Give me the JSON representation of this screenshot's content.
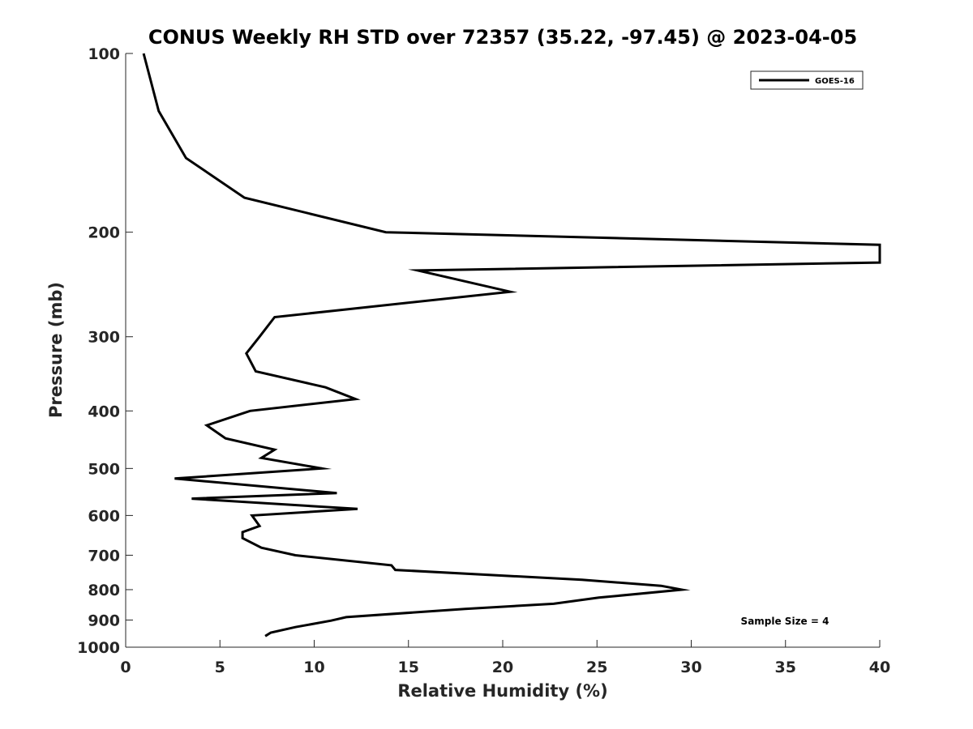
{
  "chart_data": {
    "type": "line",
    "title": "CONUS Weekly RH STD over 72357 (35.22, -97.45) @ 2023-04-05",
    "xlabel": "Relative Humidity (%)",
    "ylabel": "Pressure (mb)",
    "xlim": [
      0,
      40
    ],
    "ylim": [
      100,
      1000
    ],
    "y_scale": "log",
    "y_reversed": true,
    "grid": false,
    "legend_position": "top-right",
    "xticks": [
      0,
      5,
      10,
      15,
      20,
      25,
      30,
      35,
      40
    ],
    "xtick_labels": [
      "0",
      "5",
      "10",
      "15",
      "20",
      "25",
      "30",
      "35",
      "40"
    ],
    "yticks": [
      100,
      200,
      300,
      400,
      500,
      600,
      700,
      800,
      900,
      1000
    ],
    "ytick_labels": [
      "100",
      "200",
      "300",
      "400",
      "500",
      "600",
      "700",
      "800",
      "900",
      "1000"
    ],
    "series": [
      {
        "name": "GOES-16",
        "color": "#000000",
        "points": [
          [
            0.95,
            100
          ],
          [
            1.75,
            125
          ],
          [
            3.2,
            150
          ],
          [
            6.3,
            175
          ],
          [
            13.8,
            200
          ],
          [
            40,
            210
          ],
          [
            40,
            225
          ],
          [
            15.5,
            232
          ],
          [
            20.4,
            252
          ],
          [
            7.9,
            278
          ],
          [
            7.1,
            300
          ],
          [
            6.4,
            320
          ],
          [
            6.9,
            343
          ],
          [
            10.6,
            365
          ],
          [
            12.2,
            382
          ],
          [
            6.6,
            400
          ],
          [
            4.3,
            423
          ],
          [
            5.3,
            445
          ],
          [
            7.9,
            465
          ],
          [
            7.2,
            480
          ],
          [
            10.4,
            500
          ],
          [
            2.6,
            520
          ],
          [
            11.2,
            550
          ],
          [
            3.5,
            562
          ],
          [
            12.3,
            585
          ],
          [
            6.7,
            600
          ],
          [
            7.1,
            625
          ],
          [
            6.2,
            640
          ],
          [
            6.2,
            655
          ],
          [
            7.2,
            680
          ],
          [
            9.0,
            700
          ],
          [
            14.1,
            728
          ],
          [
            14.3,
            741
          ],
          [
            24.2,
            770
          ],
          [
            28.4,
            788
          ],
          [
            29.5,
            800
          ],
          [
            25.1,
            825
          ],
          [
            22.7,
            845
          ],
          [
            18.0,
            862
          ],
          [
            11.7,
            890
          ],
          [
            10.9,
            902
          ],
          [
            9.0,
            925
          ],
          [
            7.7,
            945
          ],
          [
            7.4,
            958
          ]
        ]
      }
    ],
    "annotation": "Sample Size = 4"
  }
}
